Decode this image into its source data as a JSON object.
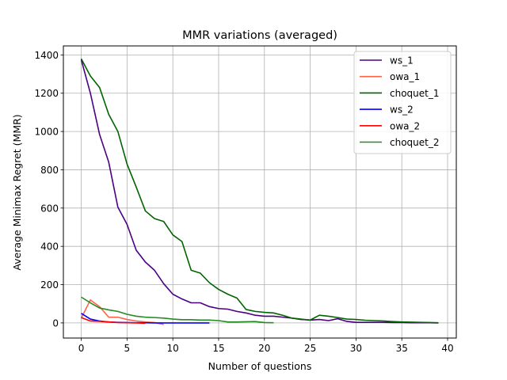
{
  "chart_data": {
    "type": "line",
    "title": "MMR variations (averaged)",
    "xlabel": "Number of questions",
    "ylabel": "Average Minimax Regret (MMR)",
    "xlim": [
      -1.95,
      40.95
    ],
    "ylim": [
      -79,
      1447
    ],
    "xticks": [
      0,
      5,
      10,
      15,
      20,
      25,
      30,
      35,
      40
    ],
    "yticks": [
      0,
      200,
      400,
      600,
      800,
      1000,
      1200,
      1400
    ],
    "grid": true,
    "legend_position": "top-right",
    "series": [
      {
        "name": "ws_1",
        "color": "#4b0082",
        "x": [
          0,
          1,
          2,
          3,
          4,
          5,
          6,
          7,
          8,
          9,
          10,
          11,
          12,
          13,
          14,
          15,
          16,
          17,
          18,
          19,
          20,
          21,
          22,
          23,
          24,
          25,
          26,
          27,
          28,
          29,
          30,
          31,
          32,
          33,
          34,
          35,
          36,
          37,
          38,
          39
        ],
        "y": [
          1375,
          1200,
          985,
          840,
          605,
          515,
          380,
          318,
          275,
          205,
          150,
          125,
          105,
          105,
          85,
          75,
          72,
          60,
          52,
          40,
          35,
          35,
          30,
          25,
          18,
          15,
          18,
          12,
          22,
          8,
          3,
          3,
          3,
          3,
          2,
          2,
          1,
          1,
          1,
          0
        ]
      },
      {
        "name": "owa_1",
        "color": "#ff6347",
        "x": [
          0,
          1,
          2,
          3,
          4,
          5,
          6,
          7,
          8,
          9
        ],
        "y": [
          25,
          120,
          85,
          30,
          30,
          18,
          10,
          5,
          2,
          -8
        ]
      },
      {
        "name": "choquet_1",
        "color": "#006400",
        "x": [
          0,
          1,
          2,
          3,
          4,
          5,
          6,
          7,
          8,
          9,
          10,
          11,
          12,
          13,
          14,
          15,
          16,
          17,
          18,
          19,
          20,
          21,
          22,
          23,
          24,
          25,
          26,
          27,
          28,
          29,
          30,
          31,
          32,
          33,
          34,
          35,
          36,
          37,
          38,
          39
        ],
        "y": [
          1380,
          1290,
          1230,
          1090,
          1000,
          830,
          710,
          585,
          545,
          530,
          460,
          425,
          275,
          260,
          210,
          175,
          150,
          130,
          70,
          60,
          55,
          52,
          40,
          25,
          20,
          15,
          40,
          35,
          28,
          20,
          18,
          14,
          12,
          10,
          7,
          5,
          4,
          3,
          2,
          1
        ]
      },
      {
        "name": "ws_2",
        "color": "#0000ff",
        "x": [
          0,
          1,
          2,
          3,
          4,
          5,
          6,
          7,
          8,
          9,
          10,
          11,
          12,
          13,
          14
        ],
        "y": [
          50,
          20,
          10,
          5,
          3,
          2,
          1,
          1,
          0,
          0,
          0,
          0,
          0,
          0,
          0
        ]
      },
      {
        "name": "owa_2",
        "color": "#ff0000",
        "x": [
          0,
          1,
          2,
          3,
          4,
          5,
          6,
          7
        ],
        "y": [
          28,
          10,
          8,
          5,
          2,
          1,
          0,
          -2
        ]
      },
      {
        "name": "choquet_2",
        "color": "#228b22",
        "x": [
          0,
          1,
          2,
          3,
          4,
          5,
          6,
          7,
          8,
          9,
          10,
          11,
          12,
          13,
          14,
          15,
          16,
          17,
          18,
          19,
          20,
          21
        ],
        "y": [
          135,
          105,
          78,
          68,
          60,
          45,
          35,
          30,
          28,
          25,
          20,
          17,
          17,
          15,
          15,
          12,
          5,
          5,
          6,
          7,
          2,
          1
        ]
      }
    ]
  }
}
